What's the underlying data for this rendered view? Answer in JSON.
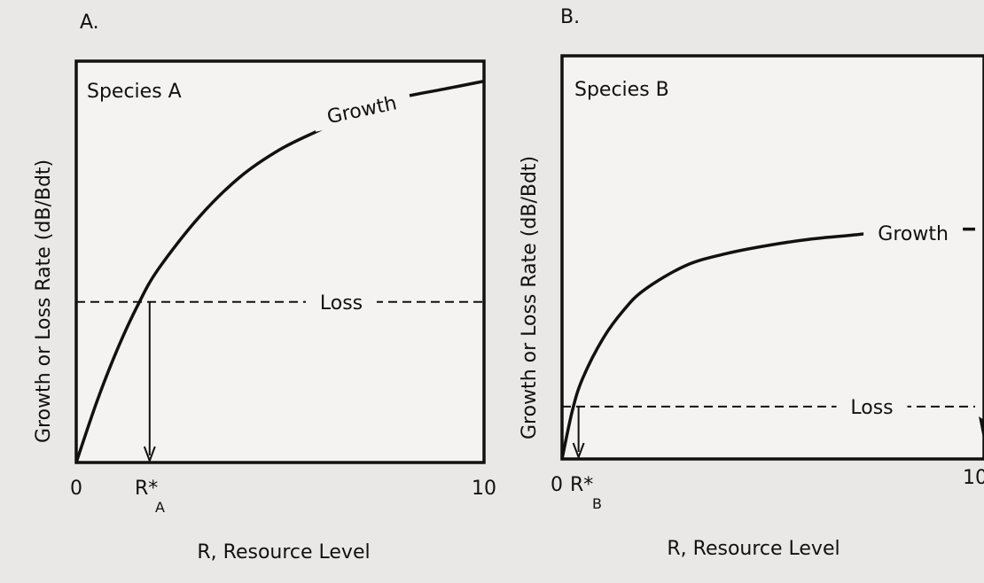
{
  "chart_data": [
    {
      "type": "line",
      "panel_label": "A.",
      "title": "Species A",
      "xlabel": "R, Resource Level",
      "ylabel": "Growth or Loss Rate (dB/Bdt)",
      "xlim": [
        0,
        10
      ],
      "ylim": [
        0,
        10
      ],
      "x_ticks": [
        "0",
        "10"
      ],
      "r_star_label": "R*",
      "r_star_sub": "A",
      "r_star": 1.8,
      "series": [
        {
          "name": "Growth",
          "x": [
            0,
            0.5,
            1,
            1.5,
            2,
            3,
            4,
            5,
            6,
            7,
            8,
            9,
            10
          ],
          "y": [
            0,
            1.5,
            2.8,
            3.9,
            4.8,
            6.1,
            7.1,
            7.8,
            8.3,
            8.8,
            9.1,
            9.3,
            9.5
          ]
        },
        {
          "name": "Loss",
          "x": [
            0,
            10
          ],
          "y": [
            4.0,
            4.0
          ]
        }
      ]
    },
    {
      "type": "line",
      "panel_label": "B.",
      "title": "Species B",
      "xlabel": "R, Resource Level",
      "ylabel": "Growth or Loss Rate (dB/Bdt)",
      "xlim": [
        0,
        10
      ],
      "ylim": [
        0,
        10
      ],
      "x_ticks": [
        "0",
        "10"
      ],
      "r_star_label": "R*",
      "r_star_sub": "B",
      "r_star": 0.4,
      "series": [
        {
          "name": "Growth",
          "x": [
            0,
            0.25,
            0.5,
            1,
            1.5,
            2,
            3,
            4,
            5,
            6,
            7,
            8,
            9,
            10
          ],
          "y": [
            0,
            1.2,
            2.0,
            3.0,
            3.7,
            4.2,
            4.8,
            5.1,
            5.3,
            5.45,
            5.55,
            5.65,
            5.7,
            5.7
          ]
        },
        {
          "name": "Loss",
          "x": [
            0,
            10
          ],
          "y": [
            1.3,
            1.3
          ]
        }
      ]
    }
  ]
}
